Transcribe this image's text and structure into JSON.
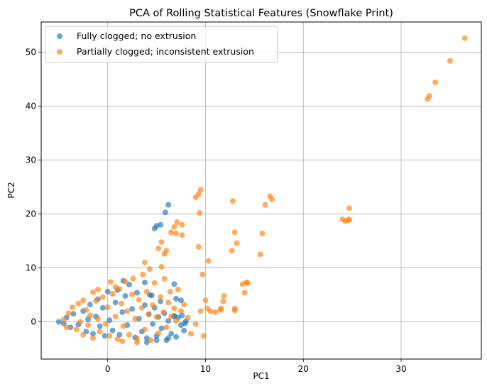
{
  "chart_data": {
    "type": "scatter",
    "title": "PCA of Rolling Statistical Features (Snowflake Print)",
    "xlabel": "PC1",
    "ylabel": "PC2",
    "xlim": [
      -6.8,
      38.2
    ],
    "ylim": [
      -6.9,
      55.6
    ],
    "x_ticks": [
      0,
      10,
      20,
      30
    ],
    "y_ticks": [
      0,
      10,
      20,
      30,
      40,
      50
    ],
    "x_tick_labels": [
      "0",
      "10",
      "20",
      "30"
    ],
    "y_tick_labels": [
      "0",
      "10",
      "20",
      "30",
      "40",
      "50"
    ],
    "grid": true,
    "legend_position": "top-left",
    "series": [
      {
        "name": "Fully clogged; no extrusion",
        "color": "#1f77b4",
        "points": [
          [
            -5.0,
            0.0
          ],
          [
            -4.5,
            -0.3
          ],
          [
            -4.2,
            0.8
          ],
          [
            -3.8,
            -1.0
          ],
          [
            -3.5,
            1.5
          ],
          [
            -3.0,
            -0.5
          ],
          [
            -2.5,
            2.0
          ],
          [
            -2.2,
            -1.8
          ],
          [
            -2.0,
            0.5
          ],
          [
            -1.8,
            3.2
          ],
          [
            -1.5,
            -2.2
          ],
          [
            -1.2,
            1.0
          ],
          [
            -1.0,
            4.2
          ],
          [
            -0.8,
            -0.8
          ],
          [
            -0.5,
            2.6
          ],
          [
            -0.3,
            -2.6
          ],
          [
            0.0,
            5.6
          ],
          [
            0.2,
            0.3
          ],
          [
            0.5,
            -1.6
          ],
          [
            0.8,
            3.6
          ],
          [
            1.0,
            5.9
          ],
          [
            1.2,
            -2.4
          ],
          [
            1.5,
            1.8
          ],
          [
            1.8,
            4.8
          ],
          [
            2.0,
            -0.6
          ],
          [
            2.2,
            6.9
          ],
          [
            2.5,
            2.4
          ],
          [
            2.8,
            -2.9
          ],
          [
            3.0,
            5.4
          ],
          [
            3.2,
            0.6
          ],
          [
            3.5,
            -1.8
          ],
          [
            3.8,
            3.1
          ],
          [
            4.0,
            -3.0
          ],
          [
            4.2,
            1.4
          ],
          [
            4.5,
            4.9
          ],
          [
            4.6,
            -0.4
          ],
          [
            4.8,
            2.6
          ],
          [
            5.0,
            -2.6
          ],
          [
            5.2,
            0.9
          ],
          [
            5.4,
            3.8
          ],
          [
            5.5,
            -1.2
          ],
          [
            5.8,
            1.6
          ],
          [
            6.0,
            -3.4
          ],
          [
            6.2,
            0.2
          ],
          [
            6.5,
            -2.2
          ],
          [
            6.8,
            1.1
          ],
          [
            7.0,
            -2.8
          ],
          [
            7.2,
            0.8
          ],
          [
            7.5,
            -0.6
          ],
          [
            7.6,
            1.2
          ],
          [
            7.8,
            -1.6
          ],
          [
            7.9,
            -0.3
          ],
          [
            8.0,
            0.1
          ],
          [
            6.2,
            -3.0
          ],
          [
            1.6,
            7.6
          ],
          [
            3.8,
            7.3
          ],
          [
            4.3,
            5.0
          ],
          [
            6.8,
            7.0
          ],
          [
            7.0,
            4.3
          ],
          [
            7.5,
            4.0
          ],
          [
            6.8,
            1.0
          ],
          [
            4.8,
            17.3
          ],
          [
            5.0,
            17.8
          ],
          [
            5.4,
            18.0
          ],
          [
            5.9,
            20.3
          ],
          [
            6.2,
            21.7
          ],
          [
            4.0,
            -3.8
          ],
          [
            5.0,
            -3.4
          ]
        ]
      },
      {
        "name": "Partially clogged; inconsistent extrusion",
        "color": "#ff7f0e",
        "points": [
          [
            -4.5,
            0.4
          ],
          [
            -4.2,
            -1.0
          ],
          [
            -4.0,
            1.6
          ],
          [
            -3.6,
            2.7
          ],
          [
            -3.2,
            -1.4
          ],
          [
            -3.0,
            3.4
          ],
          [
            -2.8,
            0.0
          ],
          [
            -2.5,
            -2.4
          ],
          [
            -2.2,
            2.2
          ],
          [
            -2.0,
            -0.6
          ],
          [
            -1.8,
            1.2
          ],
          [
            -1.5,
            -3.0
          ],
          [
            -1.2,
            3.9
          ],
          [
            -1.0,
            0.6
          ],
          [
            -0.8,
            -1.8
          ],
          [
            -0.5,
            4.6
          ],
          [
            -0.2,
            -0.4
          ],
          [
            0.0,
            2.7
          ],
          [
            0.2,
            -2.6
          ],
          [
            0.3,
            7.4
          ],
          [
            0.5,
            5.2
          ],
          [
            0.8,
            1.0
          ],
          [
            1.0,
            -3.2
          ],
          [
            1.2,
            6.1
          ],
          [
            1.4,
            3.4
          ],
          [
            1.6,
            -0.8
          ],
          [
            1.8,
            7.5
          ],
          [
            2.0,
            2.0
          ],
          [
            2.2,
            -2.4
          ],
          [
            2.5,
            5.1
          ],
          [
            2.6,
            8.0
          ],
          [
            2.8,
            0.6
          ],
          [
            3.0,
            -3.1
          ],
          [
            3.2,
            4.1
          ],
          [
            3.5,
            2.6
          ],
          [
            3.6,
            8.8
          ],
          [
            3.8,
            -1.4
          ],
          [
            4.0,
            5.6
          ],
          [
            4.2,
            1.4
          ],
          [
            4.4,
            -3.4
          ],
          [
            4.6,
            3.1
          ],
          [
            4.8,
            7.2
          ],
          [
            5.0,
            0.9
          ],
          [
            5.2,
            -2.1
          ],
          [
            5.4,
            4.6
          ],
          [
            5.5,
            10.2
          ],
          [
            5.7,
            1.8
          ],
          [
            5.8,
            8.0
          ],
          [
            6.0,
            -1.0
          ],
          [
            6.2,
            3.6
          ],
          [
            6.4,
            5.6
          ],
          [
            6.5,
            1.0
          ],
          [
            6.8,
            2.5
          ],
          [
            7.0,
            0.2
          ],
          [
            7.2,
            6.0
          ],
          [
            7.5,
            2.0
          ],
          [
            7.8,
            3.2
          ],
          [
            8.2,
            0.8
          ],
          [
            8.5,
            -2.2
          ],
          [
            9.0,
            -0.4
          ],
          [
            9.5,
            2.0
          ],
          [
            9.8,
            -2.6
          ],
          [
            10.0,
            4.0
          ],
          [
            10.2,
            2.5
          ],
          [
            10.5,
            2.0
          ],
          [
            11.0,
            1.8
          ],
          [
            11.5,
            2.2
          ],
          [
            11.6,
            2.5
          ],
          [
            11.8,
            3.8
          ],
          [
            11.9,
            4.8
          ],
          [
            13.0,
            2.1
          ],
          [
            13.0,
            2.5
          ],
          [
            13.8,
            7.0
          ],
          [
            14.0,
            5.4
          ],
          [
            14.2,
            7.3
          ],
          [
            14.3,
            7.2
          ],
          [
            3.8,
            11.0
          ],
          [
            4.3,
            9.8
          ],
          [
            5.2,
            13.6
          ],
          [
            5.5,
            14.8
          ],
          [
            5.8,
            12.6
          ],
          [
            6.0,
            13.2
          ],
          [
            6.5,
            16.6
          ],
          [
            6.8,
            17.6
          ],
          [
            7.0,
            16.4
          ],
          [
            7.1,
            18.5
          ],
          [
            7.6,
            18.0
          ],
          [
            7.6,
            16.1
          ],
          [
            9.0,
            23.1
          ],
          [
            9.3,
            23.7
          ],
          [
            9.5,
            24.5
          ],
          [
            9.4,
            20.2
          ],
          [
            9.7,
            8.8
          ],
          [
            9.3,
            13.9
          ],
          [
            10.3,
            11.3
          ],
          [
            12.7,
            13.2
          ],
          [
            12.8,
            22.4
          ],
          [
            13.0,
            16.6
          ],
          [
            13.2,
            14.6
          ],
          [
            15.6,
            12.5
          ],
          [
            15.8,
            16.4
          ],
          [
            16.1,
            21.7
          ],
          [
            16.6,
            23.3
          ],
          [
            16.8,
            22.7
          ],
          [
            24.0,
            19.0
          ],
          [
            24.3,
            18.7
          ],
          [
            24.6,
            18.8
          ],
          [
            24.7,
            19.0
          ],
          [
            24.7,
            21.1
          ],
          [
            32.7,
            41.3
          ],
          [
            32.9,
            41.9
          ],
          [
            33.5,
            44.4
          ],
          [
            35.0,
            48.4
          ],
          [
            36.5,
            52.6
          ],
          [
            -1.5,
            5.5
          ],
          [
            -1.0,
            6.0
          ],
          [
            -2.5,
            4.0
          ],
          [
            0.8,
            6.5
          ],
          [
            1.5,
            -3.6
          ],
          [
            3.0,
            -3.8
          ]
        ]
      }
    ]
  },
  "colors": {
    "grid": "#b0b0b0",
    "axis": "#000000"
  }
}
